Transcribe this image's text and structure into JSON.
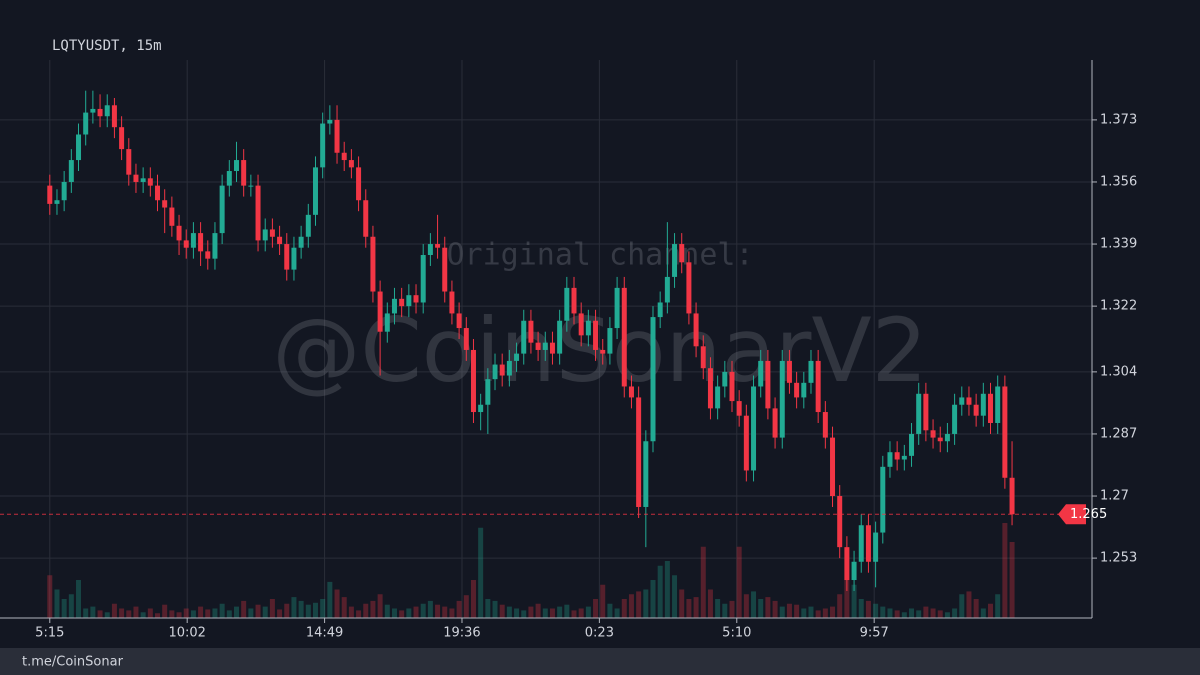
{
  "chart_data": {
    "type": "candlestick",
    "title": "LQTYUSDT, 15m",
    "annotations": [
      "Original channel:",
      "@CoinSonarV2"
    ],
    "up_color": "#22ab94",
    "down_color": "#f23645",
    "grid": true,
    "x": [
      0,
      15,
      30,
      45,
      60,
      75,
      90,
      105,
      120,
      135,
      150,
      165,
      180,
      195,
      210,
      225,
      240,
      255,
      270,
      285,
      300,
      315,
      330,
      345,
      360,
      375,
      390,
      405,
      420,
      435,
      450,
      465,
      480,
      495,
      510,
      525,
      540,
      555,
      570,
      585,
      600,
      615,
      630,
      645,
      660,
      675,
      690,
      705,
      720,
      735,
      750,
      765,
      780,
      795,
      810,
      825,
      840,
      855,
      870,
      885,
      900,
      915,
      930,
      945,
      960,
      975,
      990,
      1005,
      1020,
      1035,
      1050,
      1065,
      1080,
      1095,
      1110,
      1125,
      1140,
      1155,
      1170,
      1185,
      1200,
      1215,
      1230,
      1245,
      1260,
      1275,
      1290,
      1305,
      1320,
      1335,
      1350,
      1365,
      1380,
      1395,
      1410,
      1425,
      1440,
      1455,
      1470,
      1485,
      1500,
      1515,
      1530,
      1545,
      1560,
      1575,
      1590,
      1605,
      1620,
      1635,
      1650,
      1665,
      1680,
      1695,
      1710,
      1725,
      1740,
      1755,
      1770,
      1785,
      1800,
      1815,
      1830,
      1845,
      1860,
      1875,
      1890,
      1905,
      1920,
      1935,
      1950,
      1965,
      1980,
      1995,
      2010
    ],
    "open": [
      1.355,
      1.35,
      1.351,
      1.356,
      1.362,
      1.369,
      1.375,
      1.376,
      1.374,
      1.377,
      1.371,
      1.365,
      1.358,
      1.356,
      1.357,
      1.355,
      1.351,
      1.349,
      1.344,
      1.34,
      1.338,
      1.342,
      1.337,
      1.335,
      1.342,
      1.355,
      1.359,
      1.362,
      1.355,
      1.355,
      1.34,
      1.343,
      1.341,
      1.339,
      1.332,
      1.338,
      1.341,
      1.347,
      1.36,
      1.372,
      1.373,
      1.364,
      1.362,
      1.36,
      1.351,
      1.341,
      1.326,
      1.315,
      1.32,
      1.324,
      1.322,
      1.325,
      1.323,
      1.336,
      1.339,
      1.338,
      1.326,
      1.32,
      1.316,
      1.31,
      1.293,
      1.295,
      1.302,
      1.306,
      1.303,
      1.307,
      1.309,
      1.318,
      1.312,
      1.31,
      1.312,
      1.309,
      1.318,
      1.327,
      1.32,
      1.314,
      1.318,
      1.31,
      1.309,
      1.316,
      1.327,
      1.3,
      1.297,
      1.267,
      1.285,
      1.319,
      1.323,
      1.33,
      1.339,
      1.334,
      1.32,
      1.311,
      1.305,
      1.294,
      1.3,
      1.304,
      1.296,
      1.292,
      1.277,
      1.3,
      1.307,
      1.294,
      1.286,
      1.307,
      1.301,
      1.297,
      1.301,
      1.307,
      1.293,
      1.286,
      1.27,
      1.256,
      1.247,
      1.252,
      1.262,
      1.252,
      1.26,
      1.278,
      1.282,
      1.28,
      1.281,
      1.287,
      1.298,
      1.288,
      1.286,
      1.285,
      1.287,
      1.295,
      1.297,
      1.295,
      1.292,
      1.298,
      1.29,
      1.3,
      1.275
    ],
    "high": [
      1.358,
      1.354,
      1.359,
      1.365,
      1.372,
      1.381,
      1.381,
      1.38,
      1.38,
      1.379,
      1.374,
      1.368,
      1.361,
      1.36,
      1.36,
      1.358,
      1.354,
      1.352,
      1.347,
      1.343,
      1.345,
      1.345,
      1.34,
      1.345,
      1.358,
      1.362,
      1.367,
      1.365,
      1.358,
      1.358,
      1.346,
      1.346,
      1.344,
      1.342,
      1.341,
      1.344,
      1.35,
      1.363,
      1.375,
      1.377,
      1.377,
      1.367,
      1.365,
      1.363,
      1.354,
      1.344,
      1.329,
      1.323,
      1.327,
      1.327,
      1.328,
      1.328,
      1.339,
      1.342,
      1.347,
      1.341,
      1.329,
      1.323,
      1.319,
      1.313,
      1.298,
      1.305,
      1.309,
      1.309,
      1.31,
      1.312,
      1.321,
      1.321,
      1.315,
      1.315,
      1.315,
      1.321,
      1.33,
      1.33,
      1.323,
      1.321,
      1.321,
      1.313,
      1.319,
      1.33,
      1.33,
      1.303,
      1.3,
      1.288,
      1.322,
      1.326,
      1.345,
      1.342,
      1.342,
      1.337,
      1.323,
      1.314,
      1.308,
      1.303,
      1.307,
      1.307,
      1.299,
      1.295,
      1.303,
      1.31,
      1.31,
      1.297,
      1.31,
      1.31,
      1.304,
      1.304,
      1.31,
      1.31,
      1.296,
      1.289,
      1.273,
      1.259,
      1.255,
      1.265,
      1.265,
      1.263,
      1.281,
      1.285,
      1.285,
      1.284,
      1.29,
      1.301,
      1.301,
      1.291,
      1.289,
      1.29,
      1.298,
      1.3,
      1.3,
      1.298,
      1.301,
      1.301,
      1.303,
      1.303,
      1.285
    ],
    "low": [
      1.347,
      1.347,
      1.348,
      1.353,
      1.359,
      1.366,
      1.372,
      1.371,
      1.371,
      1.368,
      1.362,
      1.355,
      1.353,
      1.353,
      1.352,
      1.348,
      1.342,
      1.341,
      1.336,
      1.335,
      1.335,
      1.333,
      1.332,
      1.332,
      1.339,
      1.352,
      1.356,
      1.352,
      1.352,
      1.337,
      1.337,
      1.338,
      1.336,
      1.329,
      1.329,
      1.335,
      1.338,
      1.344,
      1.357,
      1.369,
      1.361,
      1.359,
      1.357,
      1.348,
      1.338,
      1.323,
      1.303,
      1.312,
      1.317,
      1.319,
      1.319,
      1.32,
      1.32,
      1.333,
      1.335,
      1.323,
      1.317,
      1.313,
      1.307,
      1.29,
      1.288,
      1.287,
      1.299,
      1.3,
      1.3,
      1.304,
      1.306,
      1.309,
      1.307,
      1.307,
      1.306,
      1.306,
      1.315,
      1.317,
      1.311,
      1.311,
      1.307,
      1.306,
      1.306,
      1.313,
      1.297,
      1.294,
      1.264,
      1.256,
      1.282,
      1.316,
      1.32,
      1.327,
      1.331,
      1.317,
      1.308,
      1.302,
      1.291,
      1.291,
      1.297,
      1.293,
      1.289,
      1.274,
      1.274,
      1.297,
      1.291,
      1.283,
      1.283,
      1.298,
      1.294,
      1.294,
      1.298,
      1.29,
      1.283,
      1.267,
      1.253,
      1.244,
      1.244,
      1.249,
      1.249,
      1.245,
      1.257,
      1.275,
      1.277,
      1.277,
      1.278,
      1.284,
      1.285,
      1.283,
      1.282,
      1.282,
      1.284,
      1.292,
      1.292,
      1.289,
      1.289,
      1.287,
      1.287,
      1.272,
      1.262
    ],
    "close": [
      1.35,
      1.351,
      1.356,
      1.362,
      1.369,
      1.375,
      1.376,
      1.374,
      1.377,
      1.371,
      1.365,
      1.358,
      1.356,
      1.357,
      1.355,
      1.351,
      1.349,
      1.344,
      1.34,
      1.338,
      1.342,
      1.337,
      1.335,
      1.342,
      1.355,
      1.359,
      1.362,
      1.355,
      1.355,
      1.34,
      1.343,
      1.341,
      1.339,
      1.332,
      1.338,
      1.341,
      1.347,
      1.36,
      1.372,
      1.373,
      1.364,
      1.362,
      1.36,
      1.351,
      1.341,
      1.326,
      1.315,
      1.32,
      1.324,
      1.322,
      1.325,
      1.323,
      1.336,
      1.339,
      1.338,
      1.326,
      1.32,
      1.316,
      1.31,
      1.293,
      1.295,
      1.302,
      1.306,
      1.303,
      1.307,
      1.309,
      1.318,
      1.312,
      1.31,
      1.312,
      1.309,
      1.318,
      1.327,
      1.32,
      1.314,
      1.318,
      1.31,
      1.309,
      1.316,
      1.327,
      1.3,
      1.297,
      1.267,
      1.285,
      1.319,
      1.323,
      1.33,
      1.339,
      1.334,
      1.32,
      1.311,
      1.305,
      1.294,
      1.3,
      1.304,
      1.296,
      1.292,
      1.277,
      1.3,
      1.307,
      1.294,
      1.286,
      1.307,
      1.301,
      1.297,
      1.301,
      1.307,
      1.293,
      1.286,
      1.27,
      1.256,
      1.247,
      1.252,
      1.262,
      1.252,
      1.26,
      1.278,
      1.282,
      1.28,
      1.281,
      1.287,
      1.298,
      1.288,
      1.286,
      1.285,
      1.287,
      1.295,
      1.297,
      1.295,
      1.292,
      1.298,
      1.29,
      1.3,
      1.275,
      1.265
    ],
    "volume": [
      45,
      30,
      20,
      25,
      40,
      10,
      12,
      8,
      6,
      15,
      10,
      8,
      12,
      6,
      10,
      5,
      14,
      8,
      6,
      10,
      8,
      12,
      9,
      10,
      15,
      8,
      12,
      18,
      10,
      14,
      12,
      20,
      9,
      15,
      22,
      18,
      14,
      16,
      20,
      38,
      30,
      22,
      12,
      8,
      15,
      18,
      25,
      14,
      10,
      8,
      10,
      12,
      15,
      18,
      14,
      12,
      10,
      18,
      24,
      40,
      95,
      20,
      18,
      14,
      12,
      10,
      8,
      12,
      15,
      10,
      10,
      12,
      14,
      8,
      10,
      12,
      20,
      35,
      15,
      10,
      20,
      25,
      28,
      30,
      40,
      55,
      60,
      45,
      30,
      20,
      22,
      75,
      30,
      20,
      15,
      18,
      75,
      25,
      28,
      20,
      22,
      18,
      12,
      15,
      14,
      10,
      12,
      8,
      10,
      12,
      25,
      40,
      35,
      20,
      18,
      15,
      12,
      10,
      8,
      6,
      10,
      8,
      12,
      10,
      8,
      6,
      10,
      25,
      28,
      20,
      10,
      15,
      25,
      100,
      80
    ],
    "xlim": [
      -104,
      2177
    ],
    "xticks": [
      {
        "value": 0,
        "label": "5:15"
      },
      {
        "value": 287,
        "label": "10:02"
      },
      {
        "value": 574,
        "label": "14:49"
      },
      {
        "value": 861,
        "label": "19:36"
      },
      {
        "value": 1148,
        "label": "0:23"
      },
      {
        "value": 1435,
        "label": "5:10"
      },
      {
        "value": 1722,
        "label": "9:57"
      }
    ],
    "ylim": [
      1.2366,
      1.3894
    ],
    "yticks": [
      1.253,
      1.27,
      1.287,
      1.304,
      1.322,
      1.339,
      1.356,
      1.373
    ]
  },
  "footer": "t.me/CoinSonar"
}
